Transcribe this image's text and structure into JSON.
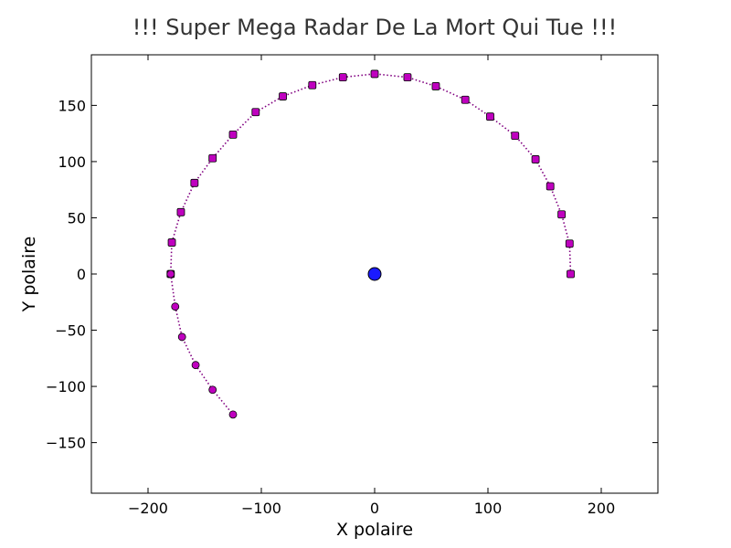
{
  "chart_data": {
    "type": "scatter",
    "title": "!!! Super Mega Radar De La Mort Qui Tue !!!",
    "xlabel": "X polaire",
    "ylabel": "Y polaire",
    "xlim": [
      -250,
      250
    ],
    "ylim": [
      -195,
      195
    ],
    "xticks": [
      -200,
      -100,
      0,
      100,
      200
    ],
    "yticks": [
      -150,
      -100,
      -50,
      0,
      50,
      100,
      150
    ],
    "xtick_labels": [
      "−200",
      "−100",
      "0",
      "100",
      "200"
    ],
    "ytick_labels": [
      "−150",
      "−100",
      "−50",
      "0",
      "50",
      "100",
      "150"
    ],
    "grid": false,
    "colors": {
      "trace_line": "#800080",
      "points": "#bf00bf",
      "origin": "#1a1aff",
      "marker_edge": "#000000"
    },
    "series": [
      {
        "marker": "square",
        "line": "dotted",
        "points": [
          [
            173,
            0
          ],
          [
            172,
            27
          ],
          [
            165,
            53
          ],
          [
            155,
            78
          ],
          [
            142,
            102
          ],
          [
            124,
            123
          ],
          [
            102,
            140
          ],
          [
            80,
            155
          ],
          [
            54,
            167
          ],
          [
            29,
            175
          ],
          [
            0,
            178
          ],
          [
            -28,
            175
          ],
          [
            -55,
            168
          ],
          [
            -81,
            158
          ],
          [
            -105,
            144
          ],
          [
            -125,
            124
          ],
          [
            -143,
            103
          ],
          [
            -159,
            81
          ],
          [
            -171,
            55
          ],
          [
            -179,
            28
          ],
          [
            -180,
            0
          ]
        ]
      },
      {
        "marker": "circle",
        "line": "dotted",
        "points": [
          [
            -180,
            0
          ],
          [
            -176,
            -29
          ],
          [
            -170,
            -56
          ],
          [
            -158,
            -81
          ],
          [
            -143,
            -103
          ],
          [
            -125,
            -125
          ]
        ]
      },
      {
        "marker": "large-circle",
        "line": "none",
        "points": [
          [
            0,
            0
          ]
        ]
      }
    ]
  }
}
